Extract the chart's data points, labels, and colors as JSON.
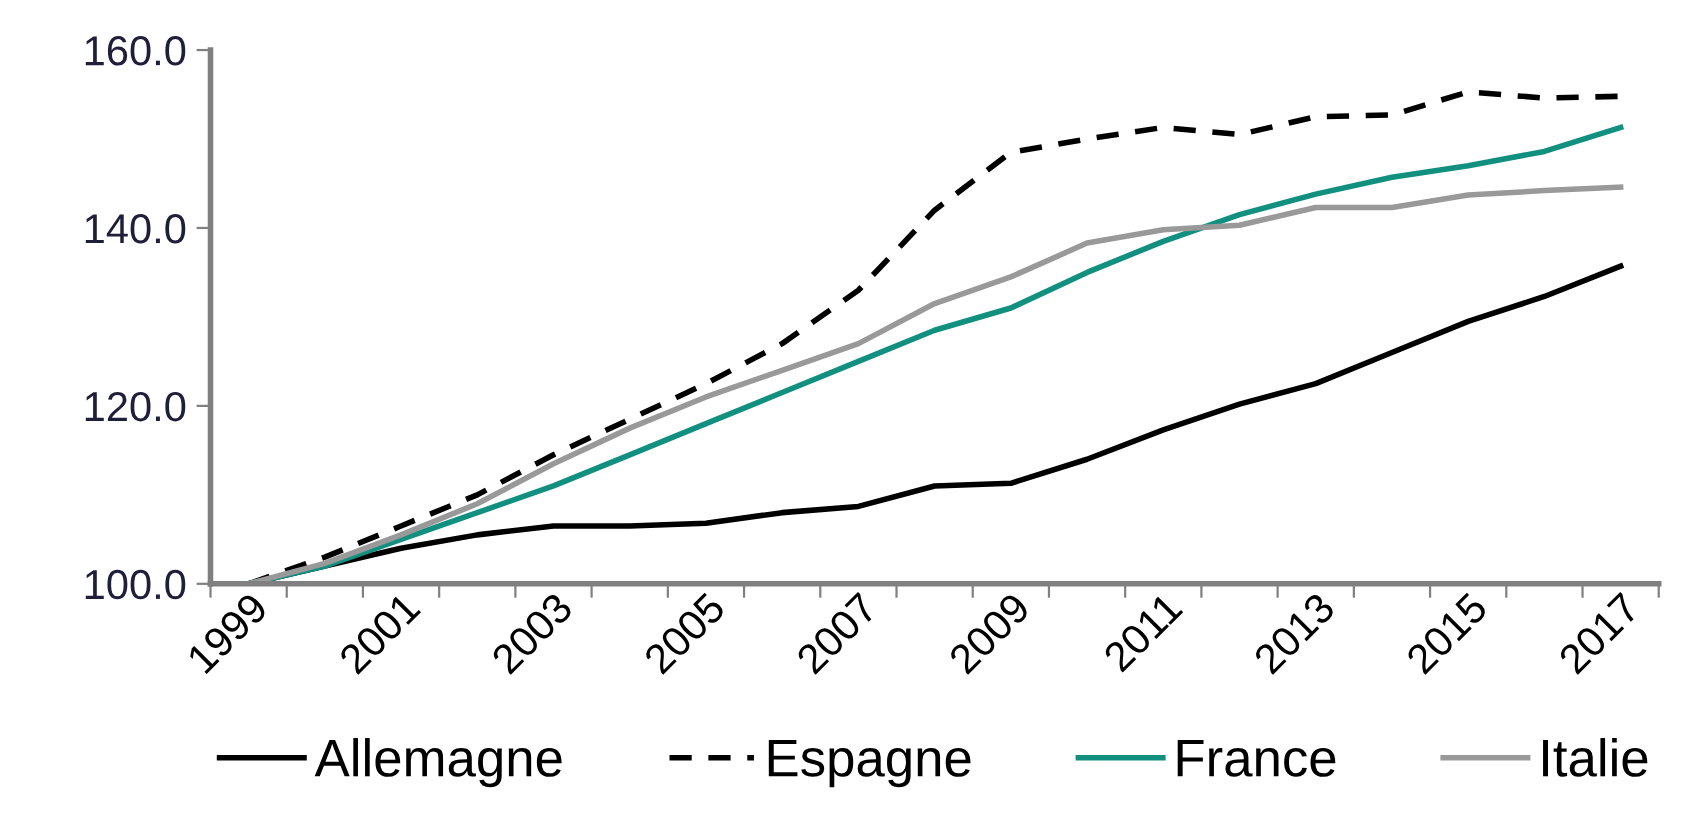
{
  "chart_data": {
    "type": "line",
    "categories": [
      "1999",
      null,
      "2001",
      null,
      "2003",
      null,
      "2005",
      null,
      "2007",
      null,
      "2009",
      null,
      "2011",
      null,
      "2013",
      null,
      "2015",
      null,
      "2017"
    ],
    "series": [
      {
        "name": "Allemagne",
        "color": "#000000",
        "line_style": "solid",
        "values": [
          100,
          102,
          104,
          105.5,
          106.5,
          106.5,
          106.8,
          108,
          108.7,
          111,
          111.3,
          114,
          117.3,
          120.2,
          122.5,
          126,
          129.5,
          132.3,
          135.7
        ]
      },
      {
        "name": "Espagne",
        "color": "#000000",
        "line_style": "dashed",
        "values": [
          100,
          103,
          106.5,
          110,
          114.5,
          118.5,
          122.5,
          127,
          133,
          142,
          148.5,
          150,
          151.3,
          150.5,
          152.5,
          152.7,
          155.3,
          154.6,
          154.8
        ]
      },
      {
        "name": "France",
        "color": "#12907f",
        "line_style": "solid",
        "values": [
          100,
          102,
          105,
          108,
          111,
          114.5,
          118,
          121.5,
          125,
          128.5,
          131,
          135,
          138.5,
          141.5,
          143.8,
          145.7,
          147,
          148.6,
          151.3
        ]
      },
      {
        "name": "Italie",
        "color": "#999999",
        "line_style": "solid",
        "values": [
          100,
          102.3,
          105.5,
          109,
          113.5,
          117.5,
          121,
          124,
          127,
          131.5,
          134.5,
          138.3,
          139.8,
          140.3,
          142.3,
          142.3,
          143.7,
          144.2,
          144.6
        ]
      }
    ],
    "ylim": [
      100,
      160
    ],
    "yticks": [
      {
        "value": 100,
        "label": "100.0"
      },
      {
        "value": 120,
        "label": "120.0"
      },
      {
        "value": 140,
        "label": "140.0"
      },
      {
        "value": 160,
        "label": "160.0"
      }
    ],
    "grid": false,
    "legend": "bottom",
    "marker": "none"
  }
}
